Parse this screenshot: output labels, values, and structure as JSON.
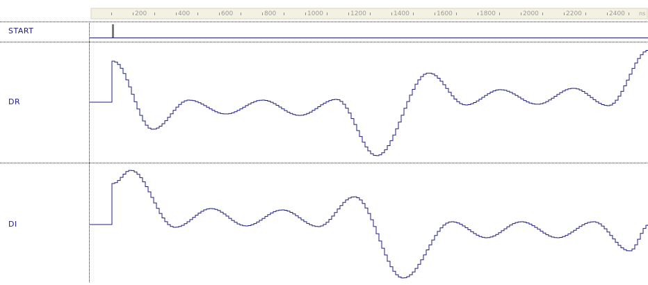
{
  "timeline": {
    "ticks": [
      "200",
      "400",
      "600",
      "800",
      "1000",
      "1200",
      "1400",
      "1600",
      "1800",
      "2000",
      "2200",
      "2400"
    ],
    "unit": "ns"
  },
  "signals": [
    {
      "id": "start",
      "label": "START"
    },
    {
      "id": "dr",
      "label": "DR"
    },
    {
      "id": "di",
      "label": "DI"
    }
  ],
  "colors": {
    "waveform": "#1c1c82",
    "label": "#1c1c82",
    "ruler_background": "#f3f1e1",
    "ruler_border": "#d8d5bf",
    "separator": "#222222",
    "start_marker": "#7a7a7a"
  }
}
